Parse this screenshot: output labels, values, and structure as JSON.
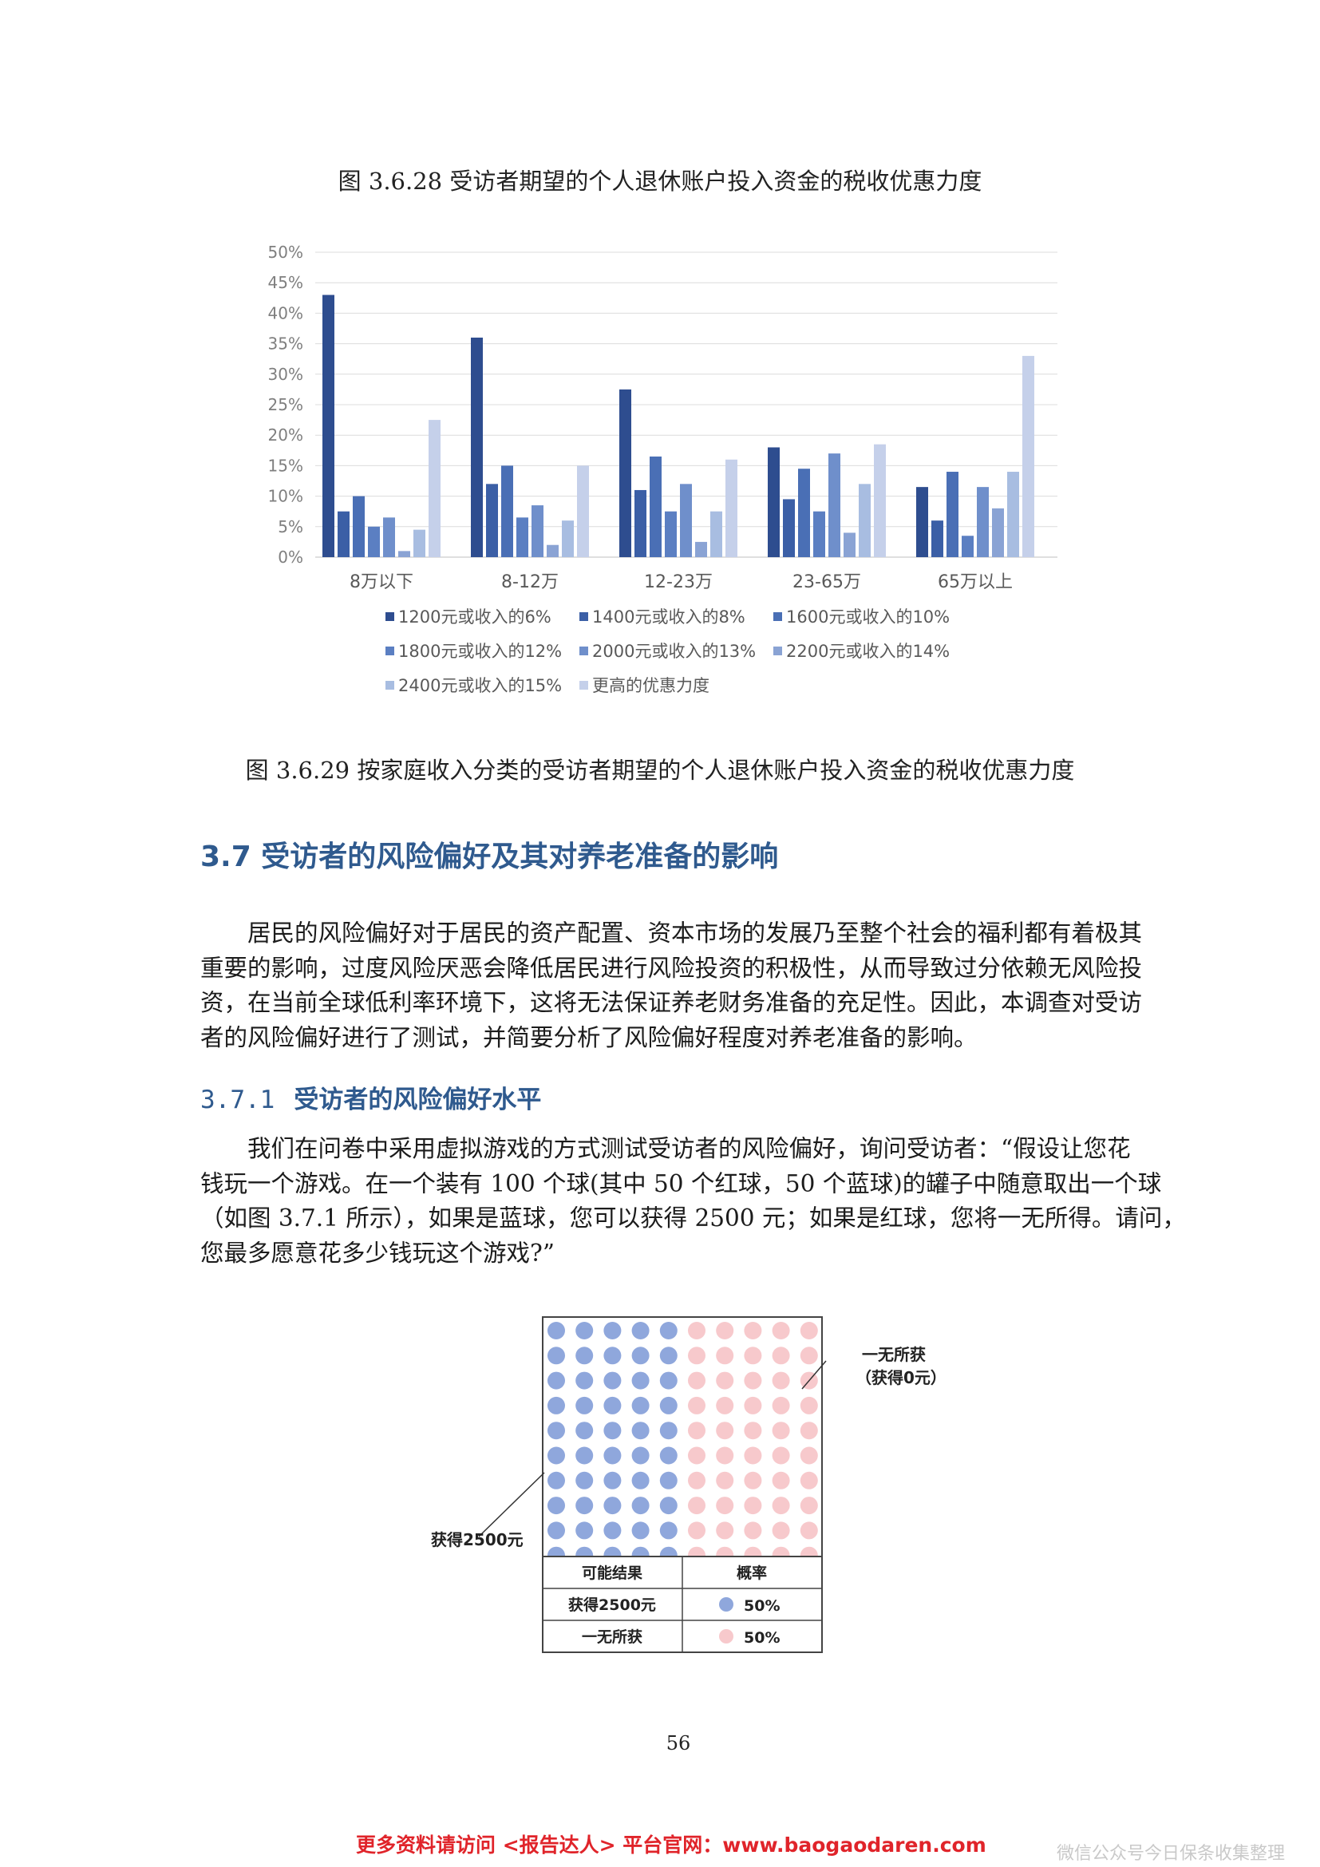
{
  "figure_3_6_28": {
    "caption": "图 3.6.28 受访者期望的个人退休账户投入资金的税收优惠力度"
  },
  "chart_data": {
    "type": "bar",
    "categories": [
      "8万以下",
      "8-12万",
      "12-23万",
      "23-65万",
      "65万以上"
    ],
    "series": [
      {
        "name": "1200元或收入的6%",
        "values": [
          43,
          36,
          27.5,
          18,
          11.5
        ]
      },
      {
        "name": "1400元或收入的8%",
        "values": [
          7.5,
          12,
          11,
          9.5,
          6
        ]
      },
      {
        "name": "1600元或收入的10%",
        "values": [
          10,
          15,
          16.5,
          14.5,
          14
        ]
      },
      {
        "name": "1800元或收入的12%",
        "values": [
          5,
          6.5,
          7.5,
          7.5,
          3.5
        ]
      },
      {
        "name": "2000元或收入的13%",
        "values": [
          6.5,
          8.5,
          12,
          17,
          11.5
        ]
      },
      {
        "name": "2200元或收入的14%",
        "values": [
          1,
          2,
          2.5,
          4,
          8
        ]
      },
      {
        "name": "2400元或收入的15%",
        "values": [
          4.5,
          6,
          7.5,
          12,
          14
        ]
      },
      {
        "name": "更高的优惠力度",
        "values": [
          22.5,
          15,
          16,
          18.5,
          33
        ]
      }
    ],
    "colors": [
      "#2e4d8f",
      "#3b5fa6",
      "#4a6fb5",
      "#5b7fc2",
      "#6f8fcb",
      "#8aa3d4",
      "#a8bde1",
      "#c5d0ea"
    ],
    "yticks": [
      "50%",
      "45%",
      "40%",
      "35%",
      "30%",
      "25%",
      "20%",
      "15%",
      "10%",
      "5%",
      "0%"
    ],
    "ylim": [
      0,
      50
    ],
    "grid": true,
    "legend_position": "bottom",
    "title": "",
    "xlabel": "",
    "ylabel": ""
  },
  "figure_3_6_29": {
    "caption": "图 3.6.29 按家庭收入分类的受访者期望的个人退休账户投入资金的税收优惠力度"
  },
  "section": {
    "heading": "3.7 受访者的风险偏好及其对养老准备的影响"
  },
  "para1": {
    "lines": [
      "居民的风险偏好对于居民的资产配置、资本市场的发展乃至整个社会的福利都有着极其",
      "重要的影响，过度风险厌恶会降低居民进行风险投资的积极性，从而导致过分依赖无风险投",
      "资，在当前全球低利率环境下，这将无法保证养老财务准备的充足性。因此，本调查对受访",
      "者的风险偏好进行了测试，并简要分析了风险偏好程度对养老准备的影响。"
    ]
  },
  "subsection": {
    "number": "3.7.1",
    "title": "受访者的风险偏好水平"
  },
  "para2": {
    "lines": [
      "我们在问卷中采用虚拟游戏的方式测试受访者的风险偏好，询问受访者：“假设让您花",
      "钱玩一个游戏。在一个装有 100 个球(其中 50 个红球，50 个蓝球)的罐子中随意取出一个球",
      "（如图 3.7.1 所示），如果是蓝球，您可以获得 2500 元；如果是红球，您将一无所得。请问，",
      "您最多愿意花多少钱玩这个游戏?”"
    ]
  },
  "figure_3_7_1": {
    "label_left": "获得2500元",
    "label_right_1": "一无所获",
    "label_right_2": "（获得0元）",
    "table_header_1": "可能结果",
    "table_header_2": "概率",
    "row1_label": "获得2500元",
    "row1_prob": "50%",
    "row2_label": "一无所获",
    "row2_prob": "50%",
    "blue_color": "#8fa7dc",
    "red_color": "#f7c9cc",
    "blue_balls": 50,
    "red_balls": 50
  },
  "page_number": "56",
  "footer": {
    "text": "更多资料请访问 <报告达人> 平台官网：www.baogaodaren.com"
  },
  "watermark": "微信公众号今日保条收集整理"
}
